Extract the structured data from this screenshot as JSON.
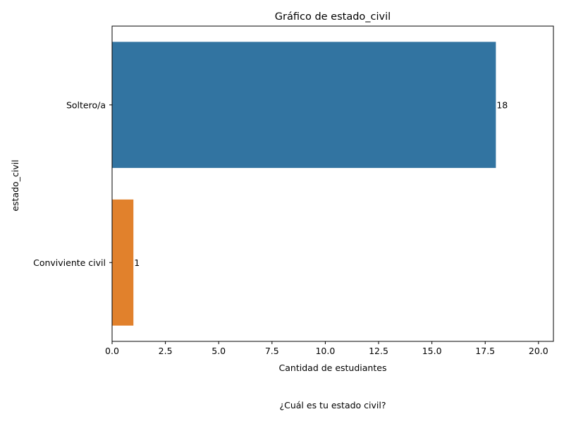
{
  "chart_data": {
    "type": "bar",
    "orientation": "horizontal",
    "title": "Gráfico de estado_civil",
    "xlabel": "Cantidad de estudiantes",
    "ylabel": "estado_civil",
    "categories": [
      "Soltero/a",
      "Conviviente civil"
    ],
    "values": [
      18,
      1
    ],
    "data_labels": [
      "18",
      "1"
    ],
    "colors": [
      "#3274a1",
      "#e1812c"
    ],
    "xlim": [
      0,
      20.7
    ],
    "xticks": [
      0.0,
      2.5,
      5.0,
      7.5,
      10.0,
      12.5,
      15.0,
      17.5,
      20.0
    ],
    "xtick_labels": [
      "0.0",
      "2.5",
      "5.0",
      "7.5",
      "10.0",
      "12.5",
      "15.0",
      "17.5",
      "20.0"
    ],
    "grid": false
  },
  "caption": "¿Cuál es tu estado civil?"
}
